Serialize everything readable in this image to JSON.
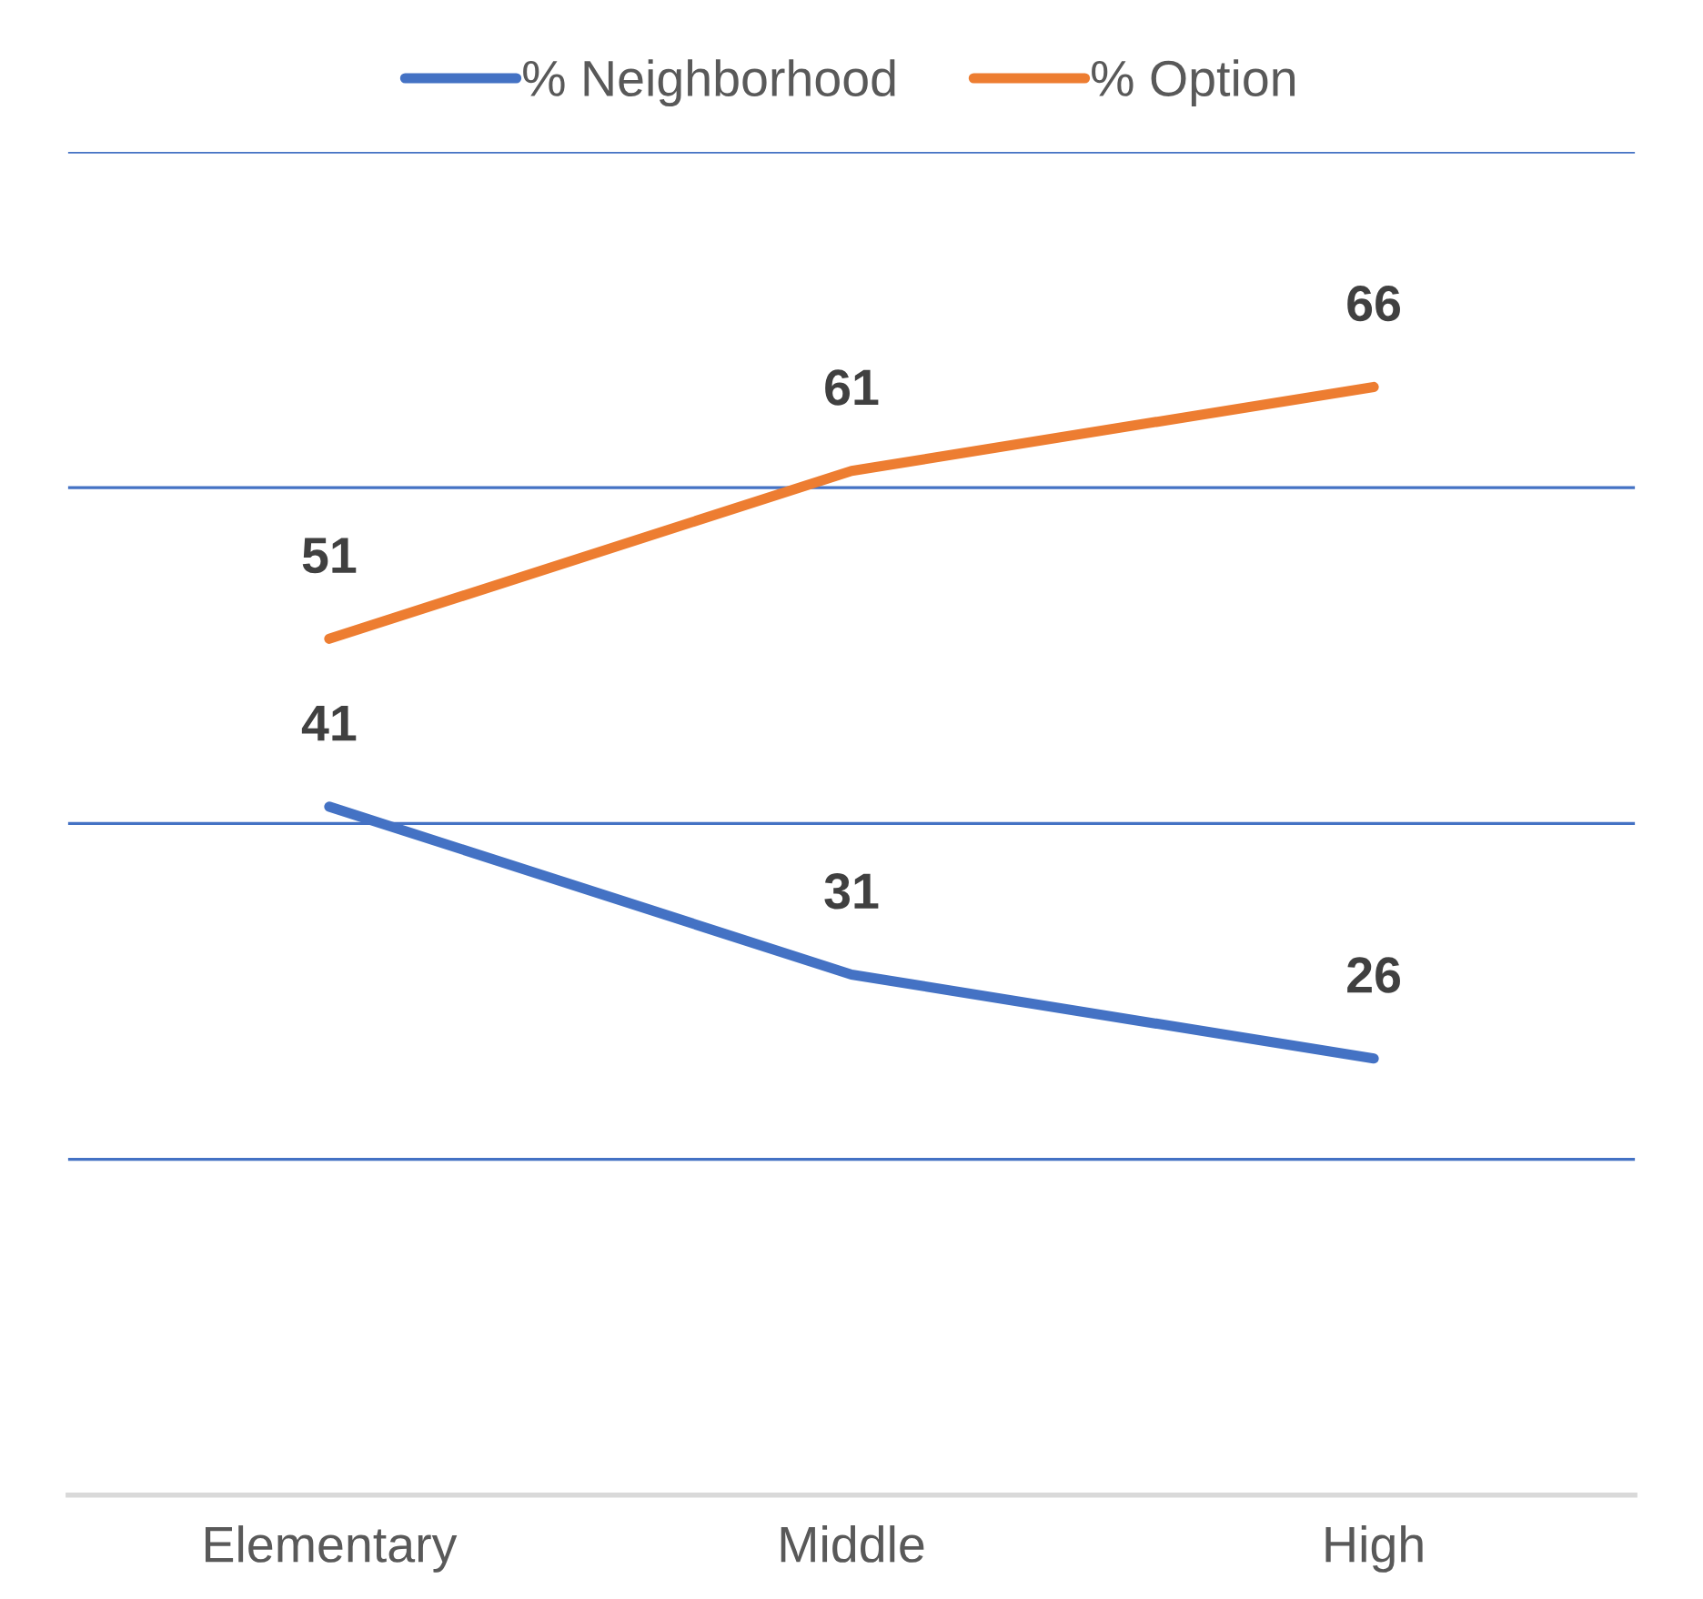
{
  "chart_data": {
    "type": "line",
    "categories": [
      "Elementary",
      "Middle",
      "High"
    ],
    "series": [
      {
        "name": "% Neighborhood",
        "color": "#4472c4",
        "values": [
          41,
          31,
          26
        ]
      },
      {
        "name": "% Option",
        "color": "#ed7d31",
        "values": [
          51,
          61,
          66
        ]
      }
    ],
    "ylim": [
      0,
      80
    ],
    "yticks": [
      {
        "value": 0,
        "label": null
      },
      {
        "value": 20,
        "label": null
      },
      {
        "value": 40,
        "label": null
      },
      {
        "value": 60,
        "label": null
      },
      {
        "value": 80,
        "label": null
      }
    ],
    "tick_labels": "x",
    "grid": "y",
    "legend": "top",
    "data_labels": true,
    "marker": "none",
    "line_style": "solid"
  }
}
